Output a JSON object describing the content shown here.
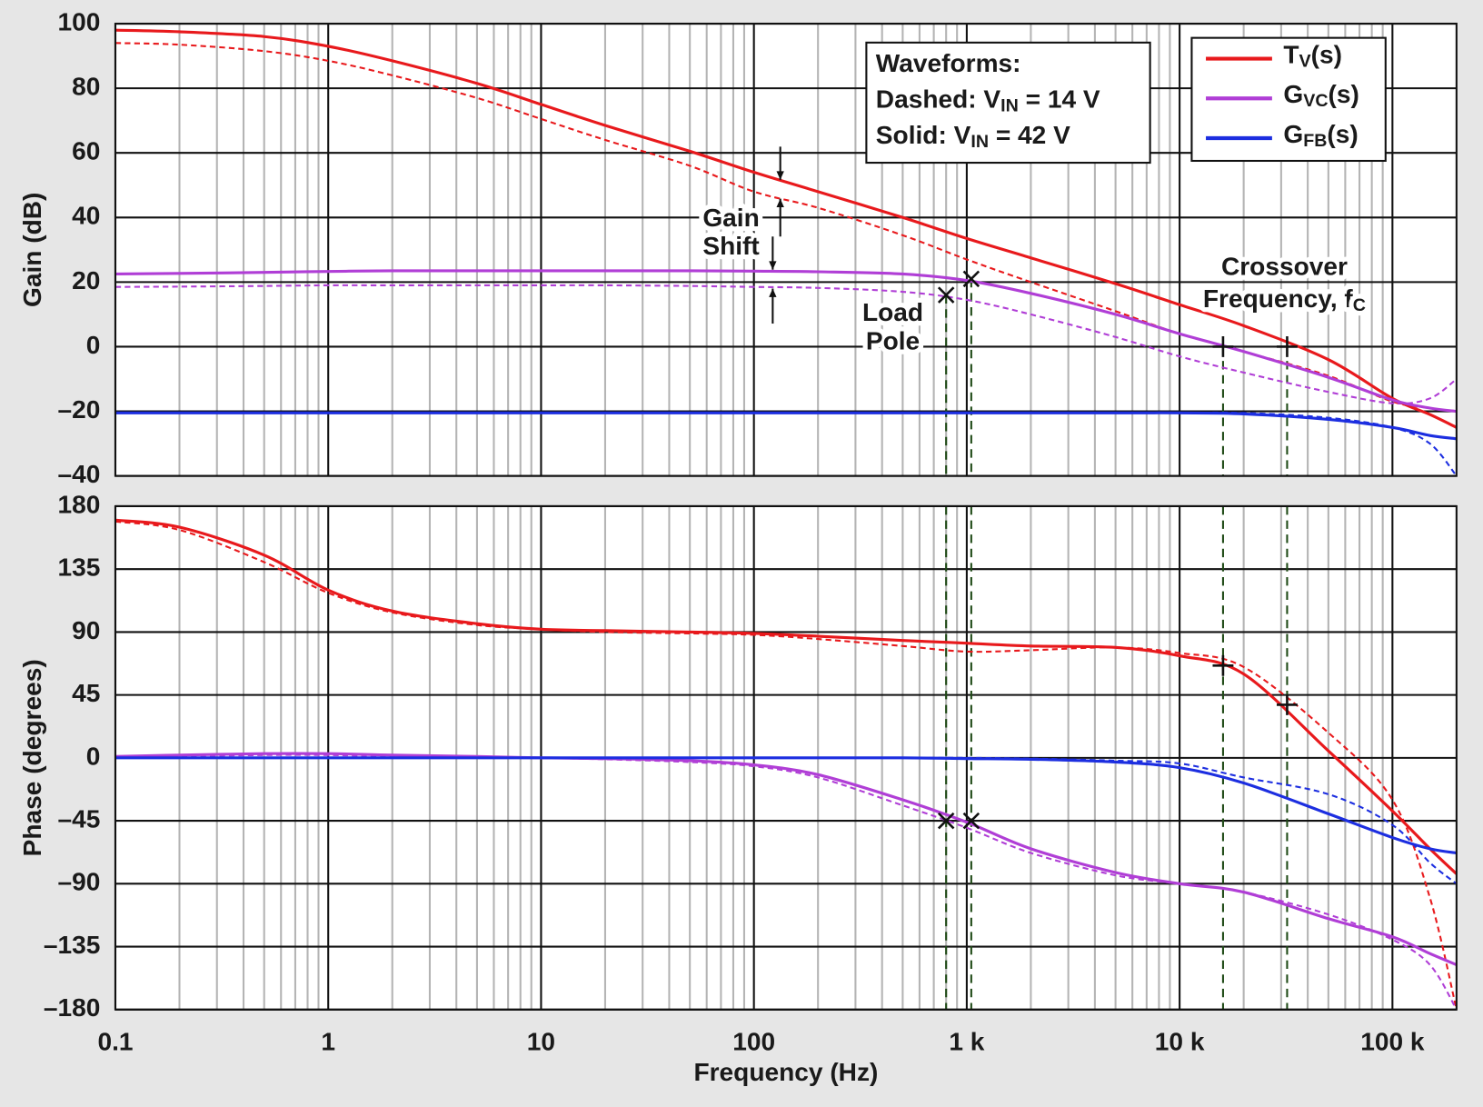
{
  "chart_data": [
    {
      "type": "line",
      "log_x": true,
      "grid": true,
      "y_label": "Gain (dB)",
      "xlim": [
        0.1,
        200000
      ],
      "ylim": [
        -40,
        100
      ],
      "yticks": [
        100,
        80,
        60,
        40,
        20,
        0,
        {
          "value": -20,
          "label": "–20"
        },
        {
          "value": -40,
          "label": "–40"
        }
      ],
      "x": [
        0.1,
        0.2,
        0.5,
        1,
        2,
        5,
        10,
        20,
        50,
        100,
        200,
        500,
        1000,
        2000,
        5000,
        10000,
        20000,
        50000,
        100000,
        150000,
        200000
      ],
      "series": [
        {
          "name": [
            {
              "t": "T"
            },
            {
              "t": "V",
              "sub": true
            },
            {
              "t": "(s)"
            }
          ],
          "color": "#e8191c",
          "dashed": false,
          "values": [
            98,
            97.5,
            96,
            93,
            88.5,
            81.5,
            75,
            68.5,
            60.5,
            54,
            48,
            40,
            33.5,
            27.5,
            19.5,
            13,
            6.5,
            -4,
            -16,
            -21,
            -25
          ]
        },
        {
          "name": [
            {
              "t": "G"
            },
            {
              "t": "VC",
              "sub": true
            },
            {
              "t": "(s)"
            }
          ],
          "color": "#b03ed6",
          "dashed": false,
          "values": [
            22.5,
            22.7,
            23,
            23.3,
            23.5,
            23.5,
            23.5,
            23.5,
            23.5,
            23.4,
            23.2,
            22.5,
            20.5,
            16.5,
            10,
            4,
            -1.5,
            -9.5,
            -16.5,
            -19,
            -20
          ]
        },
        {
          "name": [
            {
              "t": "G"
            },
            {
              "t": "FB",
              "sub": true
            },
            {
              "t": "(s)"
            }
          ],
          "color": "#1c2ee0",
          "dashed": false,
          "values": [
            -20.5,
            -20.5,
            -20.5,
            -20.5,
            -20.5,
            -20.5,
            -20.5,
            -20.5,
            -20.5,
            -20.5,
            -20.5,
            -20.5,
            -20.5,
            -20.5,
            -20.5,
            -20.5,
            -20.8,
            -22.5,
            -25,
            -27.5,
            -28.5
          ]
        },
        {
          "color": "#e8191c",
          "dashed": true,
          "values": [
            94,
            93.5,
            91.5,
            88.5,
            84,
            77,
            70.5,
            64,
            56,
            48,
            43,
            34.5,
            27,
            20,
            11,
            4,
            -1.5,
            -9,
            -17,
            -19,
            -20
          ]
        },
        {
          "color": "#b03ed6",
          "dashed": true,
          "values": [
            18.5,
            18.6,
            18.8,
            19,
            19,
            19,
            19,
            19,
            18.8,
            18.5,
            18.2,
            17,
            14.5,
            10,
            3,
            -3,
            -8,
            -14,
            -17.5,
            -16,
            -10
          ]
        },
        {
          "color": "#1c2ee0",
          "dashed": true,
          "values": [
            -20.5,
            -20.5,
            -20.5,
            -20.5,
            -20.5,
            -20.5,
            -20.5,
            -20.5,
            -20.5,
            -20.5,
            -20.5,
            -20.5,
            -20.5,
            -20.5,
            -20.5,
            -20.5,
            -20.5,
            -22,
            -25,
            -30,
            -40
          ]
        }
      ],
      "markers": [
        {
          "x": 800,
          "y": 16,
          "shape": "x"
        },
        {
          "x": 1050,
          "y": 21,
          "shape": "x"
        },
        {
          "x": 16000,
          "y": 0,
          "shape": "+"
        },
        {
          "x": 32000,
          "y": 0,
          "shape": "+"
        }
      ],
      "legend": "top-right",
      "waveforms_box": [
        [
          {
            "t": "Waveforms:"
          }
        ],
        [
          {
            "t": "Dashed: V"
          },
          {
            "t": "IN",
            "sub": true
          },
          {
            "t": " = 14 V"
          }
        ],
        [
          {
            "t": "Solid: V"
          },
          {
            "t": "IN",
            "sub": true
          },
          {
            "t": " = 42 V"
          }
        ]
      ],
      "annotations": {
        "gain_shift": [
          "Gain",
          "Shift"
        ],
        "load_pole": [
          "Load",
          "Pole"
        ],
        "crossover": [
          [
            {
              "t": "Crossover"
            }
          ],
          [
            {
              "t": "Frequency, f"
            },
            {
              "t": "C",
              "sub": true
            }
          ]
        ]
      }
    },
    {
      "type": "line",
      "log_x": true,
      "grid": true,
      "y_label": "Phase (degrees)",
      "x_label": "Frequency (Hz)",
      "xlim": [
        0.1,
        200000
      ],
      "ylim": [
        -180,
        180
      ],
      "xticks": [
        0.1,
        1,
        10,
        100,
        {
          "value": 1000,
          "label": "1 k"
        },
        {
          "value": 10000,
          "label": "10 k"
        },
        {
          "value": 100000,
          "label": "100 k"
        }
      ],
      "yticks": [
        180,
        135,
        90,
        45,
        0,
        {
          "value": -45,
          "label": "–45"
        },
        {
          "value": -90,
          "label": "–90"
        },
        {
          "value": -135,
          "label": "–135"
        },
        {
          "value": -180,
          "label": "–180"
        }
      ],
      "x": [
        0.1,
        0.2,
        0.5,
        1,
        2,
        5,
        10,
        20,
        50,
        100,
        200,
        500,
        1000,
        2000,
        5000,
        10000,
        20000,
        50000,
        100000,
        150000,
        200000
      ],
      "series": [
        {
          "color": "#e8191c",
          "dashed": false,
          "values": [
            170,
            165,
            145,
            120,
            105,
            96,
            92,
            91,
            90,
            89,
            87,
            84,
            82,
            80,
            79,
            73,
            60,
            5,
            -38,
            -65,
            -83
          ]
        },
        {
          "color": "#b03ed6",
          "dashed": false,
          "values": [
            1,
            2,
            3,
            3,
            2,
            1,
            0,
            -0.5,
            -2,
            -5,
            -12,
            -30,
            -46,
            -65,
            -82,
            -90,
            -96,
            -115,
            -128,
            -140,
            -148
          ]
        },
        {
          "color": "#1c2ee0",
          "dashed": false,
          "values": [
            0,
            0,
            0,
            0,
            0,
            0,
            0,
            0,
            0,
            0,
            0,
            0,
            -0.5,
            -1,
            -3,
            -7,
            -18,
            -40,
            -57,
            -65,
            -68
          ]
        },
        {
          "color": "#e8191c",
          "dashed": true,
          "values": [
            169,
            163,
            140,
            118,
            104,
            95,
            92,
            90,
            89,
            88,
            85,
            80,
            76,
            77,
            79,
            75,
            65,
            18,
            -30,
            -100,
            -180
          ]
        },
        {
          "color": "#b03ed6",
          "dashed": true,
          "values": [
            0,
            1,
            2,
            2,
            1,
            0.5,
            0,
            -1,
            -3,
            -6,
            -14,
            -34,
            -50,
            -68,
            -84,
            -90,
            -96,
            -112,
            -130,
            -148,
            -180
          ]
        },
        {
          "color": "#1c2ee0",
          "dashed": true,
          "values": [
            0,
            0,
            0,
            0,
            0,
            0,
            0,
            0,
            0,
            0,
            0,
            0,
            0,
            -0.5,
            -2,
            -4,
            -14,
            -26,
            -48,
            -75,
            -90
          ]
        }
      ],
      "markers": [
        {
          "x": 800,
          "y": -45,
          "shape": "x"
        },
        {
          "x": 1050,
          "y": -45,
          "shape": "x"
        },
        {
          "x": 16000,
          "y": 66,
          "shape": "+"
        },
        {
          "x": 32000,
          "y": 38,
          "shape": "+"
        }
      ]
    }
  ]
}
